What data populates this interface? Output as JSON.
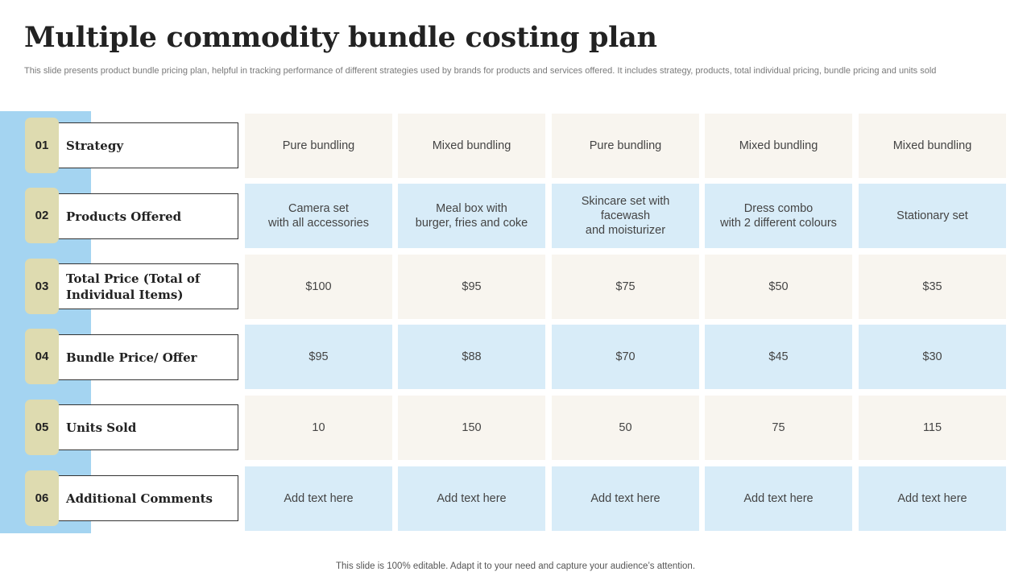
{
  "title": "Multiple commodity bundle costing plan",
  "subtitle": "This slide presents product bundle pricing plan, helpful in tracking performance of different strategies used by brands for products and services offered. It includes strategy, products, total individual pricing, bundle pricing and units sold",
  "rows": [
    {
      "number": "01",
      "label": "Strategy",
      "cells": [
        "Pure bundling",
        "Mixed bundling",
        "Pure bundling",
        "Mixed bundling",
        "Mixed bundling"
      ]
    },
    {
      "number": "02",
      "label": "Products Offered",
      "cells": [
        "Camera set\nwith all accessories",
        "Meal box with\nburger, fries and coke",
        "Skincare set with\nfacewash\nand moisturizer",
        "Dress combo\nwith 2 different colours",
        "Stationary set"
      ]
    },
    {
      "number": "03",
      "label": "Total Price (Total of Individual Items)",
      "cells": [
        "$100",
        "$95",
        "$75",
        "$50",
        "$35"
      ]
    },
    {
      "number": "04",
      "label": "Bundle Price/ Offer",
      "cells": [
        "$95",
        "$88",
        "$70",
        "$45",
        "$30"
      ]
    },
    {
      "number": "05",
      "label": "Units Sold",
      "cells": [
        "10",
        "150",
        "50",
        "75",
        "115"
      ]
    },
    {
      "number": "06",
      "label": "Additional Comments",
      "cells": [
        "Add text here",
        "Add text here",
        "Add text here",
        "Add text here",
        "Add text here"
      ]
    }
  ],
  "footer": "This slide is 100% editable. Adapt it to your need and capture your audience’s attention.",
  "colors": {
    "side_band": "#a4d4f1",
    "badge": "#dedbb0",
    "cell_beige": "#f8f5ef",
    "cell_blue": "#d8ecf8"
  }
}
